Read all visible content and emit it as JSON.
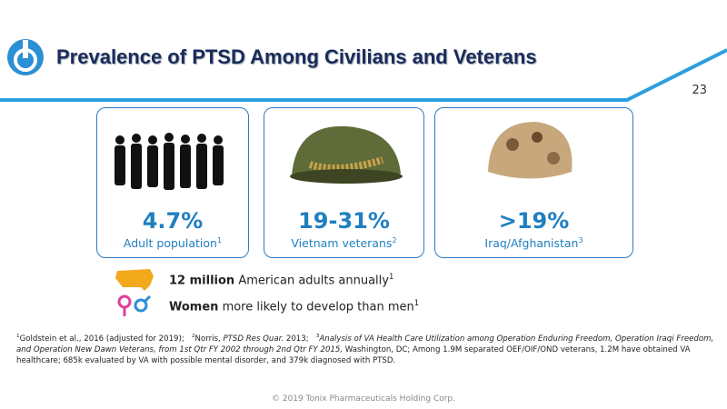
{
  "header": {
    "title": "Prevalence of PTSD Among Civilians and Veterans",
    "page_number": "23"
  },
  "cards": [
    {
      "stat": "4.7%",
      "label": "Adult population",
      "sup": "1"
    },
    {
      "stat": "19-31%",
      "label": "Vietnam veterans",
      "sup": "2"
    },
    {
      "stat": ">19%",
      "label": "Iraq/Afghanistan",
      "sup": "3"
    }
  ],
  "bullets": [
    {
      "bold": "12 million",
      "text": " American adults annually",
      "sup": "1"
    },
    {
      "bold": "Women",
      "text": " more likely to develop than men",
      "sup": "1"
    }
  ],
  "footnotes": [
    {
      "sup": "1",
      "text": "Goldstein et al., 2016 (adjusted for 2019);"
    },
    {
      "sup": "2",
      "text": "Norris, ",
      "italic": "PTSD Res Quar.",
      "rest": " 2013;"
    },
    {
      "sup": "3",
      "italic": "Analysis of VA Health Care Utilization among Operation Enduring Freedom, Operation Iraqi Freedom, and Operation New Dawn Veterans, from 1st Qtr FY 2002 through 2nd Qtr FY 2015,",
      "rest": " Washington, DC; Among 1.9M separated OEF/OIF/OND veterans, 1.2M have obtained VA healthcare; 685k evaluated by VA with possible mental disorder, and 379k diagnosed with PTSD."
    }
  ],
  "footer": "© 2019 Tonix Pharmaceuticals Holding Corp."
}
